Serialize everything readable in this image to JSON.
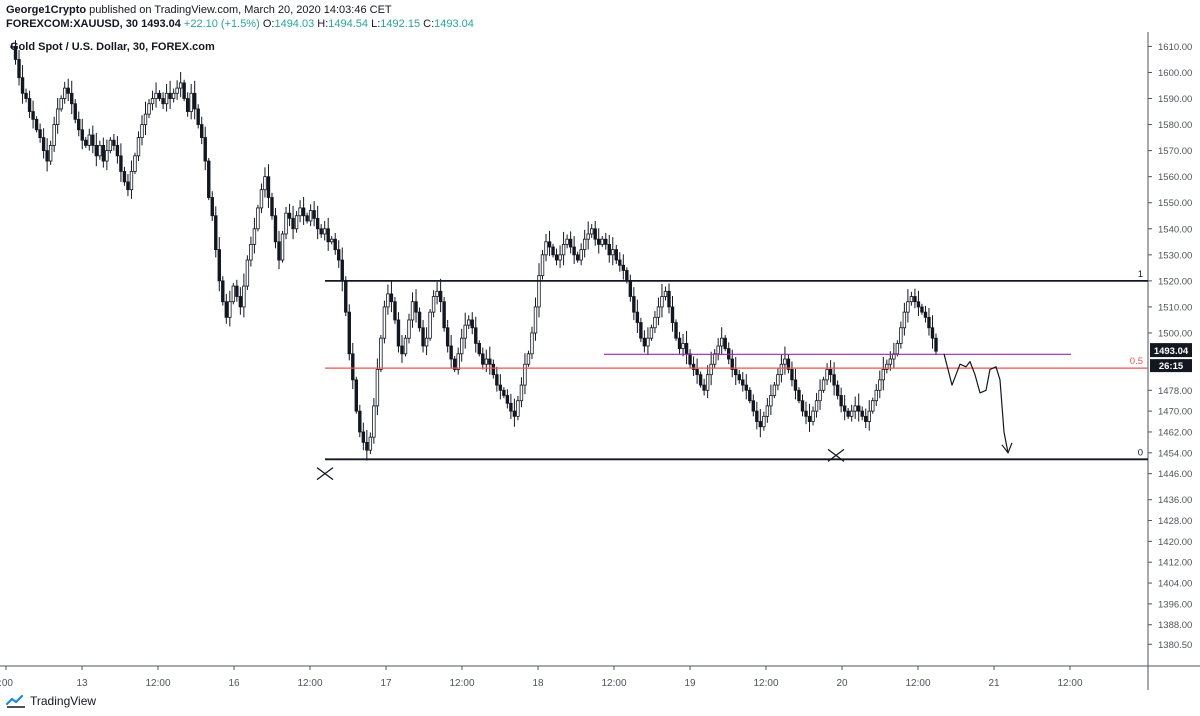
{
  "header": {
    "author": "George1Crypto",
    "published_text": "published on TradingView.com, March 20, 2020 14:03:46 CET",
    "symbol": "FOREXCOM:XAUUSD, 30",
    "price": "1493.04",
    "change": "+22.10 (+1.5%)",
    "o_label": "O:",
    "o_value": "1494.03",
    "h_label": "H:",
    "h_value": "1494.54",
    "l_label": "L:",
    "l_value": "1492.15",
    "c_label": "C:",
    "c_value": "1493.04"
  },
  "footer": {
    "brand": "TradingView"
  },
  "colors": {
    "up": "#26a69a",
    "candle": "#131722",
    "level_line": "#131722",
    "mid_line": "#ef5350",
    "purple_line": "#9c27b0",
    "price_tag_bg": "#131722",
    "axis_text": "#50535e"
  },
  "icons": [
    "tradingview-logo-icon"
  ],
  "chart_data": {
    "type": "candlestick",
    "title": "Gold Spot / U.S. Dollar, 30, FOREX.com",
    "ylim": [
      1376,
      1614
    ],
    "y_ticks": [
      "1610.00",
      "1600.00",
      "1590.00",
      "1580.00",
      "1570.00",
      "1560.00",
      "1550.00",
      "1540.00",
      "1530.00",
      "1520.00",
      "1510.00",
      "1500.00",
      "1478.00",
      "1470.00",
      "1462.00",
      "1454.00",
      "1446.00",
      "1436.00",
      "1428.00",
      "1420.00",
      "1412.00",
      "1404.00",
      "1396.00",
      "1388.00",
      "1380.50"
    ],
    "x_ticks": [
      ":00",
      "13",
      "12:00",
      "16",
      "12:00",
      "17",
      "12:00",
      "18",
      "12:00",
      "19",
      "12:00",
      "20",
      "12:00",
      "21",
      "12:00"
    ],
    "last_price": "1493.04",
    "countdown": "26:15",
    "fib_levels": [
      {
        "label": "1",
        "value": 1520
      },
      {
        "label": "0.5",
        "value": 1486.5
      },
      {
        "label": "0",
        "value": 1451.5
      }
    ],
    "purple_level": 1491.8,
    "close_series": [
      1610,
      1605,
      1598,
      1592,
      1590,
      1585,
      1582,
      1578,
      1575,
      1570,
      1566,
      1572,
      1580,
      1586,
      1590,
      1594,
      1592,
      1588,
      1582,
      1578,
      1574,
      1572,
      1576,
      1572,
      1568,
      1572,
      1566,
      1570,
      1574,
      1572,
      1568,
      1562,
      1558,
      1555,
      1562,
      1568,
      1575,
      1580,
      1584,
      1588,
      1590,
      1592,
      1590,
      1588,
      1592,
      1590,
      1592,
      1594,
      1596,
      1590,
      1585,
      1592,
      1586,
      1580,
      1575,
      1566,
      1552,
      1545,
      1532,
      1520,
      1512,
      1506,
      1512,
      1518,
      1514,
      1510,
      1518,
      1528,
      1534,
      1540,
      1548,
      1555,
      1560,
      1552,
      1545,
      1535,
      1528,
      1538,
      1546,
      1544,
      1540,
      1545,
      1548,
      1545,
      1543,
      1547,
      1544,
      1540,
      1538,
      1540,
      1535,
      1536,
      1532,
      1528,
      1520,
      1508,
      1492,
      1482,
      1470,
      1462,
      1458,
      1455,
      1460,
      1472,
      1486,
      1498,
      1510,
      1515,
      1512,
      1505,
      1495,
      1492,
      1498,
      1505,
      1512,
      1508,
      1502,
      1495,
      1498,
      1508,
      1514,
      1516,
      1512,
      1502,
      1495,
      1490,
      1486,
      1492,
      1498,
      1503,
      1505,
      1502,
      1496,
      1492,
      1488,
      1490,
      1488,
      1484,
      1480,
      1478,
      1476,
      1473,
      1470,
      1468,
      1474,
      1480,
      1488,
      1492,
      1500,
      1510,
      1522,
      1530,
      1535,
      1533,
      1530,
      1528,
      1530,
      1534,
      1536,
      1533,
      1530,
      1528,
      1532,
      1536,
      1538,
      1540,
      1536,
      1534,
      1536,
      1534,
      1530,
      1532,
      1528,
      1526,
      1524,
      1520,
      1514,
      1508,
      1504,
      1498,
      1495,
      1498,
      1502,
      1506,
      1510,
      1514,
      1516,
      1510,
      1504,
      1498,
      1494,
      1496,
      1492,
      1488,
      1486,
      1484,
      1480,
      1478,
      1484,
      1488,
      1492,
      1495,
      1498,
      1494,
      1490,
      1486,
      1484,
      1482,
      1480,
      1478,
      1474,
      1470,
      1466,
      1464,
      1468,
      1472,
      1476,
      1480,
      1484,
      1488,
      1490,
      1486,
      1482,
      1478,
      1474,
      1470,
      1468,
      1466,
      1470,
      1474,
      1478,
      1482,
      1486,
      1484,
      1480,
      1476,
      1472,
      1470,
      1468,
      1470,
      1472,
      1470,
      1468,
      1466,
      1470,
      1474,
      1478,
      1482,
      1486,
      1488,
      1490,
      1492,
      1496,
      1502,
      1508,
      1512,
      1514,
      1512,
      1510,
      1508,
      1506,
      1502,
      1498,
      1493
    ],
    "projection": "hand-drawn arrow projecting price toward 1454 level"
  }
}
